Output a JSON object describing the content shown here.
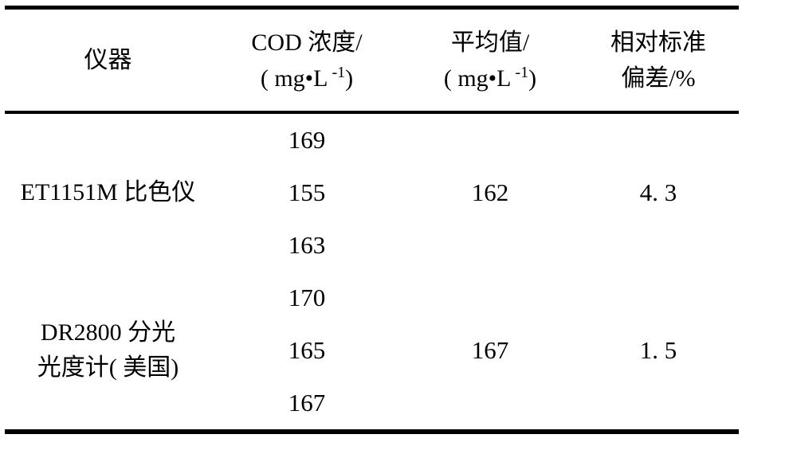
{
  "colors": {
    "background": "#ffffff",
    "text": "#000000",
    "rules": "#000000"
  },
  "table": {
    "headers": {
      "instrument": {
        "line1": "仪器"
      },
      "cod": {
        "line1": "COD 浓度/",
        "unit_pre": "( mg•L",
        "unit_sup": "-1",
        "unit_post": ")"
      },
      "mean": {
        "line1": "平均值/",
        "unit_pre": "( mg•L",
        "unit_sup": "-1",
        "unit_post": ")"
      },
      "rsd": {
        "line1": "相对标准",
        "line2": "偏差/%"
      }
    },
    "groups": [
      {
        "instrument_line1": "ET1151M 比色仪",
        "cod_values": [
          "169",
          "155",
          "163"
        ],
        "mean": "162",
        "rsd": "4. 3"
      },
      {
        "instrument_line1": "DR2800 分光",
        "instrument_line2": "光度计( 美国)",
        "cod_values": [
          "170",
          "165",
          "167"
        ],
        "mean": "167",
        "rsd": "1. 5"
      }
    ]
  }
}
